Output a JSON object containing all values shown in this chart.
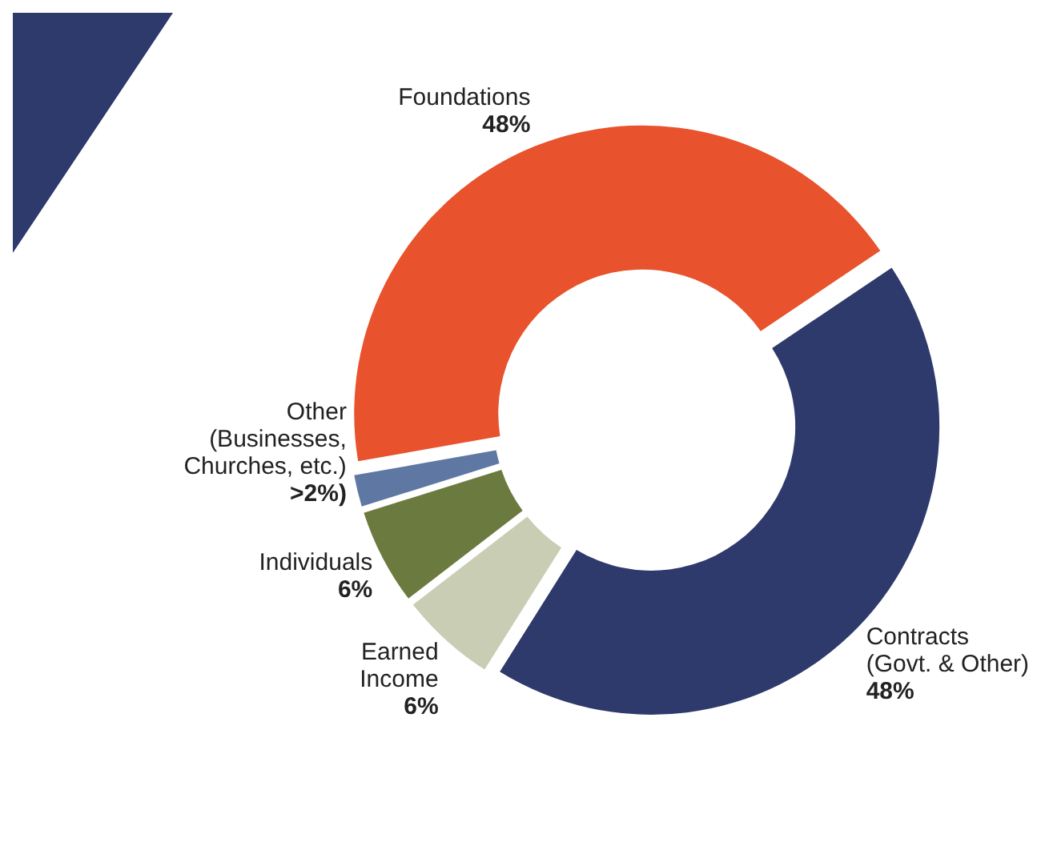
{
  "chart_data": {
    "type": "donut",
    "categories": [
      "Foundations",
      "Contracts\n(Govt. & Other)",
      "Earned\nIncome",
      "Individuals",
      "Other\n(Businesses,\nChurches, etc.)"
    ],
    "values": [
      48,
      48,
      6,
      6,
      2
    ],
    "value_labels": [
      "48%",
      "48%",
      "6%",
      "6%",
      ">2%)"
    ],
    "colors": [
      "#e8522c",
      "#2e3a6b",
      "#c8cdb4",
      "#6b7a3f",
      "#5f77a3"
    ]
  }
}
